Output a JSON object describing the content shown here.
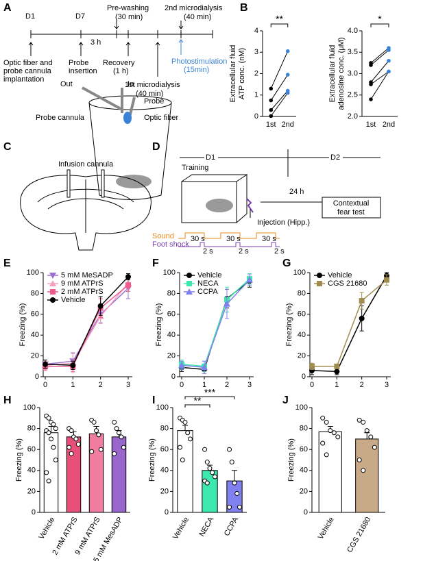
{
  "panel_labels": [
    "A",
    "B",
    "C",
    "D",
    "E",
    "F",
    "G",
    "H",
    "I",
    "J"
  ],
  "timeline": {
    "day1": "D1",
    "day7": "D7",
    "gap": "3 h",
    "prewash": [
      "Pre-washing",
      "(30 min)"
    ],
    "micro2": [
      "2nd microdialysis",
      "(40 min)"
    ],
    "implant": [
      "Optic fiber and",
      "probe cannula",
      "implantation"
    ],
    "insertion": [
      "Probe",
      "insertion"
    ],
    "recovery": [
      "Recovery",
      "(1 h)"
    ],
    "micro1": [
      "1st microdialysis",
      "(40 min)"
    ],
    "photo": [
      "Photostimulation",
      "(15min)"
    ],
    "out": "Out",
    "in": "In",
    "probe": "Probe",
    "cannula": "Probe cannula",
    "fiber": "Optic fiber"
  },
  "infusion": {
    "label": "Infusion cannula"
  },
  "behavior": {
    "d1": "D1",
    "d2": "D2",
    "training": "Training",
    "delay": "24 h",
    "test": [
      "Contextual",
      "fear test"
    ],
    "injection": "Injection (Hipp.)",
    "sound": "Sound",
    "shock": "Foot shock",
    "tone": [
      "30 s",
      "30 s",
      "30 s"
    ],
    "shock_dur": [
      "2 s",
      "2 s",
      "2 s"
    ]
  },
  "chart_data": [
    {
      "type": "paired",
      "y_label": [
        "Extracellular fluid",
        "ATP conc. (nM)"
      ],
      "categories": [
        "1st",
        "2nd"
      ],
      "ylim": [
        0,
        4
      ],
      "yticks": [
        0,
        1,
        2,
        3,
        4
      ],
      "point_colors": [
        "#000000",
        "#3b82d6"
      ],
      "series": [
        {
          "values": [
            1.3,
            3.05
          ]
        },
        {
          "values": [
            0.75,
            1.95
          ]
        },
        {
          "values": [
            0.3,
            1.2
          ]
        },
        {
          "values": [
            0.02,
            1.1
          ]
        }
      ],
      "significance": "**"
    },
    {
      "type": "paired",
      "y_label": [
        "Extracellular fluid",
        "adenosine conc. (μM)"
      ],
      "categories": [
        "1st",
        "2nd"
      ],
      "ylim": [
        2,
        4
      ],
      "yticks": [
        {
          "value": 2,
          "label": "2.0"
        },
        2.5,
        {
          "value": 3,
          "label": "3.0"
        },
        3.5,
        {
          "value": 4,
          "label": "4.0"
        }
      ],
      "point_colors": [
        "#000000",
        "#3b82d6"
      ],
      "series": [
        {
          "values": [
            3.25,
            3.6
          ]
        },
        {
          "values": [
            3.2,
            3.55
          ]
        },
        {
          "values": [
            2.8,
            3.3
          ]
        },
        {
          "values": [
            2.75,
            3.05
          ]
        },
        {
          "values": [
            2.4,
            3.05
          ]
        }
      ],
      "significance": "*"
    },
    {
      "type": "line",
      "y_label": "Freezing (%)",
      "x": [
        0,
        1,
        2,
        3
      ],
      "xlim": [
        0,
        3
      ],
      "xticks": [
        0,
        1,
        2,
        3
      ],
      "ylim": [
        0,
        100
      ],
      "yticks": [
        0,
        20,
        40,
        60,
        80,
        100
      ],
      "legend": "top-left",
      "series": [
        {
          "name": "5 mM MeSADP",
          "color": "#9b6fcf",
          "marker": "triangle-down",
          "values": [
            12,
            15,
            60,
            85
          ],
          "errors": [
            4,
            8,
            8,
            10
          ]
        },
        {
          "name": "9 mM ATPrS",
          "color": "#f4a0c0",
          "marker": "triangle-up",
          "values": [
            11,
            13,
            58,
            90
          ],
          "errors": [
            4,
            9,
            7,
            6
          ]
        },
        {
          "name": "2 mM ATPrS",
          "color": "#ee5b8c",
          "marker": "square",
          "values": [
            10,
            10,
            66,
            88
          ],
          "errors": [
            4,
            5,
            9,
            6
          ]
        },
        {
          "name": "Vehicle",
          "color": "#000000",
          "marker": "circle",
          "values": [
            12,
            11,
            68,
            96
          ],
          "errors": [
            4,
            4,
            9,
            3
          ]
        }
      ]
    },
    {
      "type": "line",
      "y_label": "Freezing (%)",
      "x": [
        0,
        1,
        2,
        3
      ],
      "xlim": [
        0,
        3
      ],
      "xticks": [
        0,
        1,
        2,
        3
      ],
      "ylim": [
        0,
        100
      ],
      "yticks": [
        0,
        20,
        40,
        60,
        80,
        100
      ],
      "legend": "top-left",
      "series": [
        {
          "name": "Vehicle",
          "color": "#000000",
          "marker": "circle",
          "values": [
            9,
            7,
            75,
            92
          ],
          "errors": [
            4,
            4,
            9,
            6
          ]
        },
        {
          "name": "NECA",
          "color": "#3de8b0",
          "marker": "square",
          "values": [
            12,
            10,
            74,
            94
          ],
          "errors": [
            4,
            5,
            12,
            5
          ]
        },
        {
          "name": "CCPA",
          "color": "#8080ee",
          "marker": "triangle-up",
          "values": [
            11,
            9,
            70,
            93
          ],
          "errors": [
            4,
            6,
            14,
            5
          ]
        }
      ]
    },
    {
      "type": "line",
      "y_label": "Freezing (%)",
      "x": [
        0,
        1,
        2,
        3
      ],
      "xlim": [
        0,
        3
      ],
      "xticks": [
        0,
        1,
        2,
        3
      ],
      "ylim": [
        0,
        100
      ],
      "yticks": [
        0,
        20,
        40,
        60,
        80,
        100
      ],
      "legend": "top-left",
      "series": [
        {
          "name": "Vehicle",
          "color": "#000000",
          "marker": "circle",
          "values": [
            6,
            5,
            56,
            97
          ],
          "errors": [
            4,
            3,
            12,
            3
          ]
        },
        {
          "name": "CGS 21680",
          "color": "#a08c50",
          "marker": "square",
          "values": [
            10,
            10,
            73,
            93
          ],
          "errors": [
            3,
            2,
            8,
            5
          ]
        }
      ]
    },
    {
      "type": "bar",
      "y_label": "Freezing (%)",
      "categories": [
        "Vehicle",
        "2 mM ATPrS",
        "9 mM ATPrS",
        "5 mM MesADP"
      ],
      "values": [
        76,
        72,
        75,
        72
      ],
      "errors": [
        6,
        5,
        7,
        6
      ],
      "colors": [
        "#ffffff",
        "#e8507a",
        "#f07ca0",
        "#9966cc"
      ],
      "ylim": [
        0,
        100
      ],
      "yticks": [
        0,
        20,
        40,
        60,
        80,
        100
      ],
      "points": [
        [
          92,
          90,
          86,
          84,
          80,
          78,
          76,
          70,
          62,
          50,
          38,
          30
        ],
        [
          80,
          78,
          72,
          70,
          65,
          62,
          56
        ],
        [
          88,
          86,
          78,
          74,
          60,
          58
        ],
        [
          86,
          80,
          76,
          72,
          62,
          56
        ]
      ]
    },
    {
      "type": "bar",
      "y_label": "Freezing (%)",
      "categories": [
        "Vehicle",
        "NECA",
        "CCPA"
      ],
      "values": [
        78,
        40,
        30
      ],
      "errors": [
        5,
        5,
        10
      ],
      "colors": [
        "#ffffff",
        "#3de8b0",
        "#8080ee"
      ],
      "ylim": [
        0,
        100
      ],
      "yticks": [
        0,
        20,
        40,
        60,
        80,
        100
      ],
      "significance": [
        "**",
        "***"
      ],
      "points": [
        [
          90,
          88,
          86,
          76,
          70,
          62,
          50
        ],
        [
          60,
          48,
          42,
          38,
          34,
          30,
          28
        ],
        [
          60,
          48,
          28,
          18,
          5,
          5
        ]
      ]
    },
    {
      "type": "bar",
      "y_label": "Freezing (%)",
      "categories": [
        "Vehicle",
        "CGS 21680"
      ],
      "values": [
        77,
        70
      ],
      "errors": [
        5,
        6
      ],
      "colors": [
        "#ffffff",
        "#c8aa88"
      ],
      "ylim": [
        0,
        100
      ],
      "yticks": [
        0,
        20,
        40,
        60,
        80,
        100
      ],
      "points": [
        [
          90,
          86,
          78,
          76,
          72,
          66,
          55
        ],
        [
          88,
          86,
          78,
          72,
          62,
          50,
          40
        ]
      ]
    }
  ]
}
